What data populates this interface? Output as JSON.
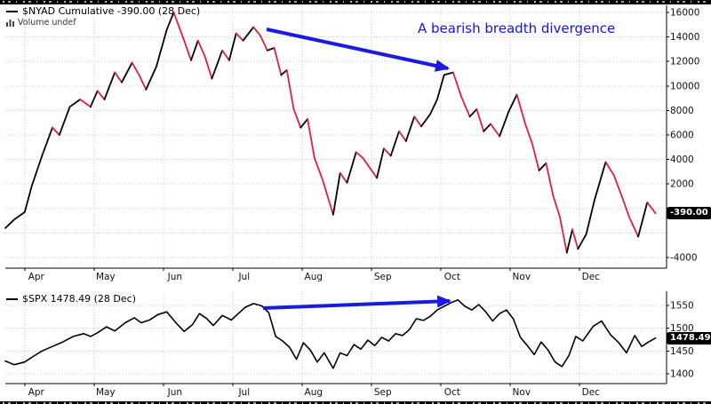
{
  "page": {
    "background": "#ffffff"
  },
  "colors": {
    "grid": "#c9c9c9",
    "axis": "#000000",
    "arrow": "#1a1ae0",
    "annotation_text": "#1414e0",
    "price_badge_bg": "#000000",
    "price_badge_text": "#ffffff"
  },
  "annotation": {
    "text": "A bearish breadth divergence",
    "arrows": [
      [
        300,
        33,
        504,
        77
      ],
      [
        296,
        347,
        506,
        339
      ]
    ]
  },
  "chart_data": [
    {
      "type": "line",
      "title": "$NYAD Cumulative",
      "legend": "$NYAD Cumulative -390.00 (28 Dec)",
      "sub_legend": "Volume undef",
      "last_value": -390.0,
      "last_label": "-390.00",
      "date_label": "(28 Dec)",
      "xlabel": "",
      "ylabel": "",
      "x_axis_months": [
        "Apr",
        "May",
        "Jun",
        "Jul",
        "Aug",
        "Sep",
        "Oct",
        "Nov",
        "Dec"
      ],
      "y_ticks": [
        16000,
        14000,
        12000,
        10000,
        8000,
        6000,
        4000,
        2000,
        -4000
      ],
      "grid_values": [
        16000,
        14000,
        12000,
        10000,
        8000,
        6000,
        4000,
        2000,
        0,
        -2000,
        -4000
      ],
      "ylim": [
        -4870,
        16580
      ],
      "line_colors": {
        "rising": "#000000",
        "falling": "#E61C3C"
      },
      "x_unit": "months from Apr 1",
      "points": [
        [
          -0.28,
          -1600
        ],
        [
          -0.15,
          -900
        ],
        [
          0,
          -300
        ],
        [
          0.1,
          1800
        ],
        [
          0.25,
          4300
        ],
        [
          0.4,
          6600
        ],
        [
          0.5,
          6000
        ],
        [
          0.65,
          8300
        ],
        [
          0.8,
          8900
        ],
        [
          0.95,
          8300
        ],
        [
          1.05,
          9600
        ],
        [
          1.15,
          8900
        ],
        [
          1.3,
          11100
        ],
        [
          1.4,
          10300
        ],
        [
          1.55,
          11900
        ],
        [
          1.65,
          10900
        ],
        [
          1.75,
          9700
        ],
        [
          1.9,
          11600
        ],
        [
          2.05,
          14600
        ],
        [
          2.15,
          16000
        ],
        [
          2.3,
          13700
        ],
        [
          2.4,
          12100
        ],
        [
          2.5,
          13700
        ],
        [
          2.6,
          12400
        ],
        [
          2.7,
          10600
        ],
        [
          2.85,
          12900
        ],
        [
          2.95,
          12100
        ],
        [
          3.05,
          14300
        ],
        [
          3.15,
          13700
        ],
        [
          3.3,
          14800
        ],
        [
          3.4,
          14100
        ],
        [
          3.5,
          12900
        ],
        [
          3.6,
          13100
        ],
        [
          3.7,
          10900
        ],
        [
          3.78,
          11300
        ],
        [
          3.88,
          8100
        ],
        [
          3.98,
          6600
        ],
        [
          4.08,
          7300
        ],
        [
          4.18,
          4100
        ],
        [
          4.3,
          2300
        ],
        [
          4.45,
          -500
        ],
        [
          4.55,
          2900
        ],
        [
          4.65,
          2100
        ],
        [
          4.78,
          4600
        ],
        [
          4.88,
          4100
        ],
        [
          4.98,
          3300
        ],
        [
          5.08,
          2500
        ],
        [
          5.18,
          4900
        ],
        [
          5.28,
          4300
        ],
        [
          5.4,
          6300
        ],
        [
          5.5,
          5500
        ],
        [
          5.62,
          7500
        ],
        [
          5.72,
          6700
        ],
        [
          5.85,
          7700
        ],
        [
          5.95,
          8900
        ],
        [
          6.05,
          10900
        ],
        [
          6.18,
          11100
        ],
        [
          6.3,
          9100
        ],
        [
          6.42,
          7500
        ],
        [
          6.52,
          8100
        ],
        [
          6.62,
          6300
        ],
        [
          6.72,
          6900
        ],
        [
          6.85,
          5900
        ],
        [
          6.98,
          7900
        ],
        [
          7.1,
          9300
        ],
        [
          7.22,
          6900
        ],
        [
          7.32,
          5300
        ],
        [
          7.42,
          3100
        ],
        [
          7.52,
          3700
        ],
        [
          7.62,
          1100
        ],
        [
          7.72,
          -700
        ],
        [
          7.82,
          -3600
        ],
        [
          7.9,
          -1700
        ],
        [
          7.98,
          -3300
        ],
        [
          8.1,
          -2100
        ],
        [
          8.22,
          700
        ],
        [
          8.38,
          3800
        ],
        [
          8.5,
          2700
        ],
        [
          8.62,
          900
        ],
        [
          8.72,
          -700
        ],
        [
          8.85,
          -2300
        ],
        [
          8.98,
          500
        ],
        [
          9.1,
          -390
        ]
      ]
    },
    {
      "type": "line",
      "title": "$SPX",
      "legend": "$SPX 1478.49 (28 Dec)",
      "sub_legend": "",
      "last_value": 1478.49,
      "last_label": "1478.49",
      "date_label": "(28 Dec)",
      "xlabel": "",
      "ylabel": "",
      "x_axis_months": [
        "Apr",
        "May",
        "Jun",
        "Jul",
        "Aug",
        "Sep",
        "Oct",
        "Nov",
        "Dec"
      ],
      "y_ticks": [
        1550,
        1500,
        1450,
        1400
      ],
      "grid_values": [
        1550,
        1500,
        1450,
        1400
      ],
      "ylim": [
        1378,
        1581
      ],
      "line_colors": {
        "rising": "#000000",
        "falling": "#000000"
      },
      "x_unit": "months from Apr 1",
      "points": [
        [
          -0.28,
          1428
        ],
        [
          -0.15,
          1420
        ],
        [
          0,
          1426
        ],
        [
          0.12,
          1438
        ],
        [
          0.25,
          1450
        ],
        [
          0.4,
          1460
        ],
        [
          0.55,
          1470
        ],
        [
          0.7,
          1482
        ],
        [
          0.85,
          1488
        ],
        [
          0.95,
          1482
        ],
        [
          1.05,
          1490
        ],
        [
          1.18,
          1503
        ],
        [
          1.3,
          1494
        ],
        [
          1.45,
          1512
        ],
        [
          1.58,
          1523
        ],
        [
          1.68,
          1512
        ],
        [
          1.8,
          1518
        ],
        [
          1.92,
          1530
        ],
        [
          2.05,
          1536
        ],
        [
          2.18,
          1512
        ],
        [
          2.3,
          1493
        ],
        [
          2.42,
          1508
        ],
        [
          2.52,
          1532
        ],
        [
          2.62,
          1522
        ],
        [
          2.72,
          1506
        ],
        [
          2.85,
          1528
        ],
        [
          2.98,
          1518
        ],
        [
          3.08,
          1532
        ],
        [
          3.18,
          1546
        ],
        [
          3.3,
          1554
        ],
        [
          3.42,
          1549
        ],
        [
          3.52,
          1534
        ],
        [
          3.62,
          1482
        ],
        [
          3.72,
          1472
        ],
        [
          3.82,
          1458
        ],
        [
          3.92,
          1432
        ],
        [
          4.02,
          1468
        ],
        [
          4.12,
          1452
        ],
        [
          4.22,
          1426
        ],
        [
          4.32,
          1446
        ],
        [
          4.45,
          1412
        ],
        [
          4.55,
          1446
        ],
        [
          4.65,
          1440
        ],
        [
          4.75,
          1464
        ],
        [
          4.85,
          1454
        ],
        [
          4.95,
          1474
        ],
        [
          5.05,
          1462
        ],
        [
          5.15,
          1480
        ],
        [
          5.25,
          1472
        ],
        [
          5.35,
          1488
        ],
        [
          5.45,
          1484
        ],
        [
          5.55,
          1497
        ],
        [
          5.65,
          1521
        ],
        [
          5.75,
          1517
        ],
        [
          5.85,
          1526
        ],
        [
          5.95,
          1540
        ],
        [
          6.05,
          1548
        ],
        [
          6.15,
          1556
        ],
        [
          6.25,
          1562
        ],
        [
          6.35,
          1548
        ],
        [
          6.45,
          1540
        ],
        [
          6.55,
          1552
        ],
        [
          6.65,
          1536
        ],
        [
          6.75,
          1516
        ],
        [
          6.85,
          1532
        ],
        [
          6.95,
          1540
        ],
        [
          7.05,
          1520
        ],
        [
          7.15,
          1480
        ],
        [
          7.25,
          1462
        ],
        [
          7.35,
          1442
        ],
        [
          7.45,
          1470
        ],
        [
          7.55,
          1452
        ],
        [
          7.65,
          1426
        ],
        [
          7.75,
          1416
        ],
        [
          7.85,
          1440
        ],
        [
          7.95,
          1482
        ],
        [
          8.05,
          1472
        ],
        [
          8.2,
          1504
        ],
        [
          8.32,
          1516
        ],
        [
          8.45,
          1486
        ],
        [
          8.57,
          1468
        ],
        [
          8.68,
          1446
        ],
        [
          8.8,
          1484
        ],
        [
          8.9,
          1460
        ],
        [
          9.0,
          1470
        ],
        [
          9.1,
          1478.49
        ]
      ]
    }
  ]
}
